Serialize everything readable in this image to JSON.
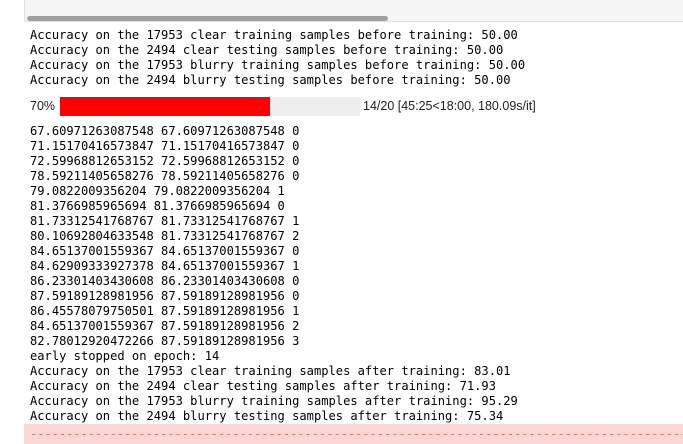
{
  "output": {
    "before_lines": [
      "Accuracy on the 17953 clear training samples before training: 50.00",
      "Accuracy on the 2494 clear testing samples before training: 50.00",
      "Accuracy on the 17953 blurry training samples before training: 50.00",
      "Accuracy on the 2494 blurry testing samples before training: 50.00"
    ],
    "progress": {
      "percent_label": "70%",
      "fraction": 0.7,
      "status": "14/20 [45:25<18:00, 180.09s/it]",
      "fill_color": "#fe0000"
    },
    "after_lines": [
      "67.60971263087548 67.60971263087548 0",
      "71.15170416573847 71.15170416573847 0",
      "72.59968812653152 72.59968812653152 0",
      "78.59211405658276 78.59211405658276 0",
      "79.0822009356204 79.0822009356204 1",
      "81.3766985965694 81.3766985965694 0",
      "81.73312541768767 81.73312541768767 1",
      "80.10692804633548 81.73312541768767 2",
      "84.65137001559367 84.65137001559367 0",
      "84.62909333927378 84.65137001559367 1",
      "86.23301403430608 86.23301403430608 0",
      "87.59189128981956 87.59189128981956 0",
      "86.45578079750501 87.59189128981956 1",
      "84.65137001559367 87.59189128981956 2",
      "82.78012920472266 87.59189128981956 3",
      "early stopped on epoch: 14",
      "Accuracy on the 17953 clear training samples after training: 83.01",
      "Accuracy on the 2494 clear testing samples after training: 71.93",
      "Accuracy on the 17953 blurry training samples after training: 95.29",
      "Accuracy on the 2494 blurry testing samples after training: 75.34"
    ],
    "stderr_line": "------------------------------------------------------------------------------------------------------------------------------------"
  }
}
